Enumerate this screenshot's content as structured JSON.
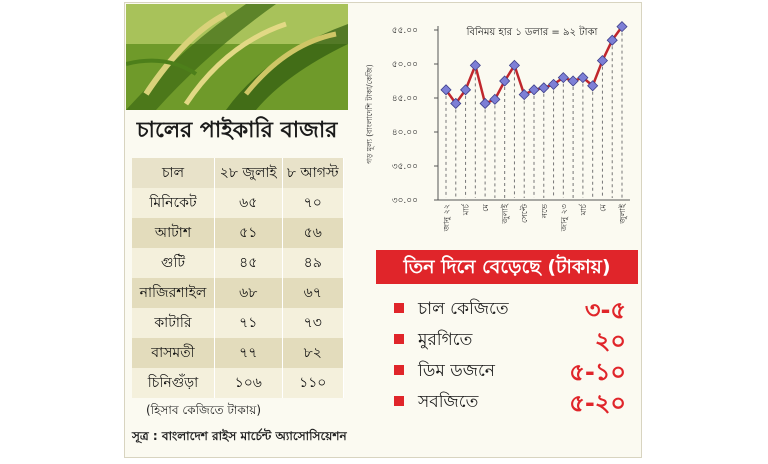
{
  "table": {
    "title": "চালের পাইকারি বাজার",
    "columns": [
      "চাল",
      "২৮ জুলাই",
      "৮ আগস্ট"
    ],
    "rows": [
      [
        "মিনিকেট",
        "৬৫",
        "৭০"
      ],
      [
        "আটাশ",
        "৫১",
        "৫৬"
      ],
      [
        "গুটি",
        "৪৫",
        "৪৯"
      ],
      [
        "নাজিরশাইল",
        "৬৮",
        "৬৭"
      ],
      [
        "কাটারি",
        "৭১",
        "৭৩"
      ],
      [
        "বাসমতী",
        "৭৭",
        "৮২"
      ],
      [
        "চিনিগুঁড়া",
        "১০৬",
        "১১০"
      ]
    ],
    "unit_note": "(হিসাব কেজিতে টাকায়)",
    "source": "সূত্র : বাংলাদেশ রাইস মার্চেন্ট অ্যাসোসিয়েশন"
  },
  "rise": {
    "title": "তিন দিনে বেড়েছে (টাকায়)",
    "items": [
      {
        "label": "চাল কেজিতে",
        "value": "৩-৫"
      },
      {
        "label": "মুরগিতে",
        "value": "২০"
      },
      {
        "label": "ডিম ডজনে",
        "value": "৫-১০"
      },
      {
        "label": "সবজিতে",
        "value": "৫-২০"
      }
    ]
  },
  "chart_data": {
    "type": "line",
    "annotation": "বিনিময় হার ১ ডলার = ৯২ টাকা",
    "ylabel": "গড় মূল্য (বাংলাদেশি টাকা/কেজি)",
    "ylim": [
      30,
      55
    ],
    "yticks": [
      "৩০.০০",
      "৩৫.০০",
      "৪০.০০",
      "৪৫.০০",
      "৫০.০০",
      "৫৫.০০"
    ],
    "xticks": [
      "জানু ২২",
      "মার্চ",
      "মে",
      "জুলাই",
      "সেপ্টে",
      "নভে",
      "জানু ২৩",
      "মার্চ",
      "মে",
      "জুলাই"
    ],
    "values": [
      46.2,
      44.2,
      46.2,
      49.8,
      44.2,
      44.8,
      47.5,
      49.8,
      45.5,
      46.2,
      46.5,
      47.0,
      48.0,
      47.5,
      48.0,
      46.8,
      50.5,
      53.5,
      55.5
    ],
    "line_color": "#c0272d",
    "marker_color": "#7d7fd6"
  }
}
